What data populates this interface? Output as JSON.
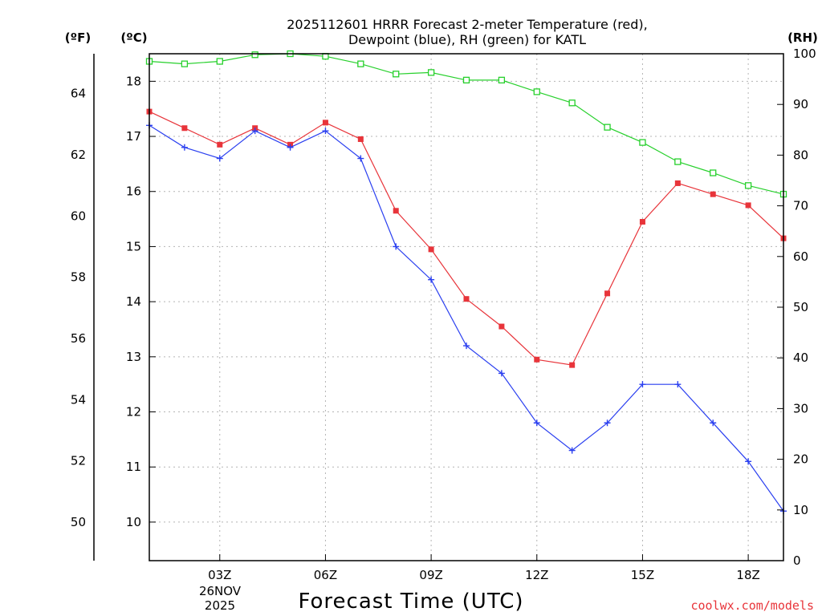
{
  "chart_data": {
    "type": "line",
    "title": [
      "2025112601 HRRR Forecast 2-meter Temperature (red),",
      "Dewpoint (blue), RH (green) for KATL"
    ],
    "xlabel": "Forecast Time (UTC)",
    "date_label": [
      "26NOV",
      "2025"
    ],
    "credit": "coolwx.com/models",
    "units": {
      "fahrenheit": "(ºF)",
      "celsius": "(ºC)",
      "rh": "(RH)"
    },
    "x_hours": [
      1,
      2,
      3,
      4,
      5,
      6,
      7,
      8,
      9,
      10,
      11,
      12,
      13,
      14,
      15,
      16,
      17,
      18,
      19
    ],
    "xlim": [
      1,
      19
    ],
    "x_ticks": [
      {
        "hour": 3,
        "label": "03Z"
      },
      {
        "hour": 6,
        "label": "06Z"
      },
      {
        "hour": 9,
        "label": "09Z"
      },
      {
        "hour": 12,
        "label": "12Z"
      },
      {
        "hour": 15,
        "label": "15Z"
      },
      {
        "hour": 18,
        "label": "18Z"
      }
    ],
    "ylim_celsius": [
      9.3,
      18.5
    ],
    "ylim_rh": [
      0,
      100
    ],
    "celsius_ticks": [
      "10",
      "11",
      "12",
      "13",
      "14",
      "15",
      "16",
      "17",
      "18"
    ],
    "fahrenheit_ticks": [
      "50",
      "52",
      "54",
      "56",
      "58",
      "60",
      "62",
      "64"
    ],
    "rh_ticks": [
      "0",
      "10",
      "20",
      "30",
      "40",
      "50",
      "60",
      "70",
      "80",
      "90",
      "100"
    ],
    "series": [
      {
        "name": "Temperature",
        "axis": "celsius",
        "color": "#e8343a",
        "marker": "square-filled",
        "values": [
          17.45,
          17.15,
          16.85,
          17.15,
          16.85,
          17.25,
          16.95,
          15.65,
          14.95,
          14.05,
          13.55,
          12.95,
          12.85,
          14.15,
          15.45,
          16.15,
          15.95,
          15.75,
          15.15
        ]
      },
      {
        "name": "Dewpoint",
        "axis": "celsius",
        "color": "#2a3ff0",
        "marker": "plus",
        "values": [
          17.2,
          16.8,
          16.6,
          17.1,
          16.8,
          17.1,
          16.6,
          15.0,
          14.4,
          13.2,
          12.7,
          11.8,
          11.3,
          11.8,
          12.5,
          12.5,
          11.8,
          11.1,
          10.2
        ]
      },
      {
        "name": "RH",
        "axis": "rh",
        "color": "#27d02c",
        "marker": "square-open",
        "values": [
          98.5,
          98.0,
          98.5,
          99.8,
          100.0,
          99.5,
          98.0,
          96.0,
          96.3,
          94.8,
          94.8,
          92.5,
          90.3,
          85.5,
          82.5,
          78.7,
          76.5,
          74.0,
          72.3
        ]
      }
    ],
    "colors": {
      "axis": "#000000",
      "grid": "#b4b4b4"
    }
  }
}
